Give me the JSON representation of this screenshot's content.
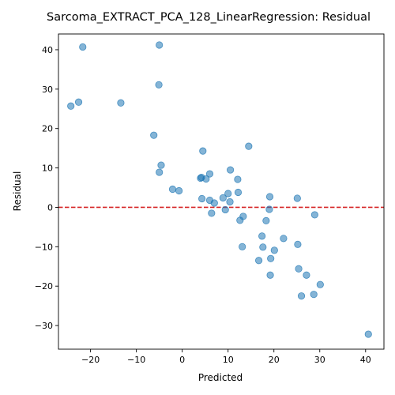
{
  "chart_data": {
    "type": "scatter",
    "title": "Sarcoma_EXTRACT_PCA_128_LinearRegression: Residual",
    "xlabel": "Predicted",
    "ylabel": "Residual",
    "xlim": [
      -27,
      44
    ],
    "ylim": [
      -36,
      44
    ],
    "xticks": [
      -20,
      -10,
      0,
      10,
      20,
      30,
      40
    ],
    "yticks": [
      -30,
      -20,
      -10,
      0,
      10,
      20,
      30,
      40
    ],
    "grid": false,
    "reference_line": {
      "y": 0,
      "color": "#d62728",
      "style": "dashed"
    },
    "point_color": "#1f77b4",
    "points": [
      [
        -21.7,
        40.7
      ],
      [
        -5.0,
        41.2
      ],
      [
        -5.1,
        31.1
      ],
      [
        -24.3,
        25.7
      ],
      [
        -22.6,
        26.7
      ],
      [
        -13.4,
        26.5
      ],
      [
        -6.2,
        18.3
      ],
      [
        4.5,
        14.3
      ],
      [
        14.5,
        15.5
      ],
      [
        -4.6,
        10.7
      ],
      [
        -5.0,
        8.9
      ],
      [
        10.5,
        9.5
      ],
      [
        6.0,
        8.5
      ],
      [
        4.2,
        7.6
      ],
      [
        4.0,
        7.4
      ],
      [
        5.2,
        7.2
      ],
      [
        12.1,
        7.1
      ],
      [
        -2.1,
        4.6
      ],
      [
        -0.7,
        4.2
      ],
      [
        10.0,
        3.5
      ],
      [
        12.2,
        3.8
      ],
      [
        4.3,
        2.2
      ],
      [
        6.0,
        1.8
      ],
      [
        8.9,
        2.4
      ],
      [
        7.0,
        1.1
      ],
      [
        10.4,
        1.4
      ],
      [
        19.1,
        2.7
      ],
      [
        25.1,
        2.3
      ],
      [
        6.4,
        -1.5
      ],
      [
        9.4,
        -0.6
      ],
      [
        13.3,
        -2.3
      ],
      [
        19.0,
        -0.5
      ],
      [
        28.9,
        -1.9
      ],
      [
        12.6,
        -3.3
      ],
      [
        18.3,
        -3.4
      ],
      [
        17.4,
        -7.3
      ],
      [
        22.1,
        -7.9
      ],
      [
        25.2,
        -9.4
      ],
      [
        13.1,
        -10.0
      ],
      [
        17.6,
        -10.1
      ],
      [
        20.1,
        -10.9
      ],
      [
        16.7,
        -13.5
      ],
      [
        19.3,
        -13.0
      ],
      [
        25.4,
        -15.6
      ],
      [
        27.1,
        -17.2
      ],
      [
        19.2,
        -17.2
      ],
      [
        30.1,
        -19.6
      ],
      [
        26.0,
        -22.5
      ],
      [
        28.7,
        -22.1
      ],
      [
        40.6,
        -32.2
      ]
    ]
  }
}
